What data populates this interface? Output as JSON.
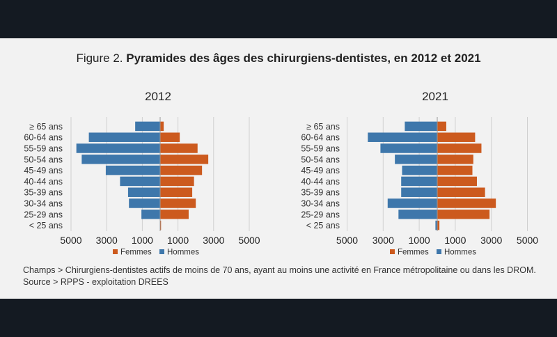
{
  "figure": {
    "prefix": "Figure 2. ",
    "title": "Pyramides des âges des chirurgiens-dentistes, en 2012 et 2021"
  },
  "notes": {
    "scope": "Champs > Chirurgiens-dentistes actifs de moins de 70 ans, ayant au moins une activité en France métropolitaine ou dans les DROM.",
    "source": "Source > RPPS - exploitation DREES"
  },
  "colors": {
    "femmes": "#cc5a1e",
    "hommes": "#3e77ab",
    "grid": "#d0d0d0"
  },
  "chart_data": [
    {
      "type": "bar",
      "orientation": "population-pyramid",
      "title": "2012",
      "categories": [
        "≥ 65 ans",
        "60-64 ans",
        "55-59 ans",
        "50-54 ans",
        "45-49 ans",
        "40-44 ans",
        "35-39 ans",
        "30-34 ans",
        "25-29 ans",
        "< 25 ans"
      ],
      "series": [
        {
          "name": "Femmes",
          "values": [
            200,
            1100,
            2100,
            2700,
            2350,
            1900,
            1800,
            2000,
            1600,
            50
          ]
        },
        {
          "name": "Hommes",
          "values": [
            1400,
            4000,
            4700,
            4400,
            3050,
            2250,
            1800,
            1750,
            1050,
            20
          ]
        }
      ],
      "xticks": [
        "5000",
        "3000",
        "1000",
        "1000",
        "3000",
        "5000"
      ],
      "xlim": [
        -5000,
        5000
      ],
      "grid": true,
      "legend": "bottom"
    },
    {
      "type": "bar",
      "orientation": "population-pyramid",
      "title": "2021",
      "categories": [
        "≥ 65 ans",
        "60-64 ans",
        "55-59 ans",
        "50-54 ans",
        "45-49 ans",
        "40-44 ans",
        "35-39 ans",
        "30-34 ans",
        "25-29 ans",
        "< 25 ans"
      ],
      "series": [
        {
          "name": "Femmes",
          "values": [
            500,
            2100,
            2450,
            2000,
            1950,
            2200,
            2650,
            3250,
            2900,
            120
          ]
        },
        {
          "name": "Hommes",
          "values": [
            1800,
            3850,
            3150,
            2350,
            1950,
            2000,
            2000,
            2750,
            2150,
            100
          ]
        }
      ],
      "xticks": [
        "5000",
        "3000",
        "1000",
        "1000",
        "3000",
        "5000"
      ],
      "xlim": [
        -5000,
        5000
      ],
      "grid": true,
      "legend": "bottom"
    }
  ]
}
